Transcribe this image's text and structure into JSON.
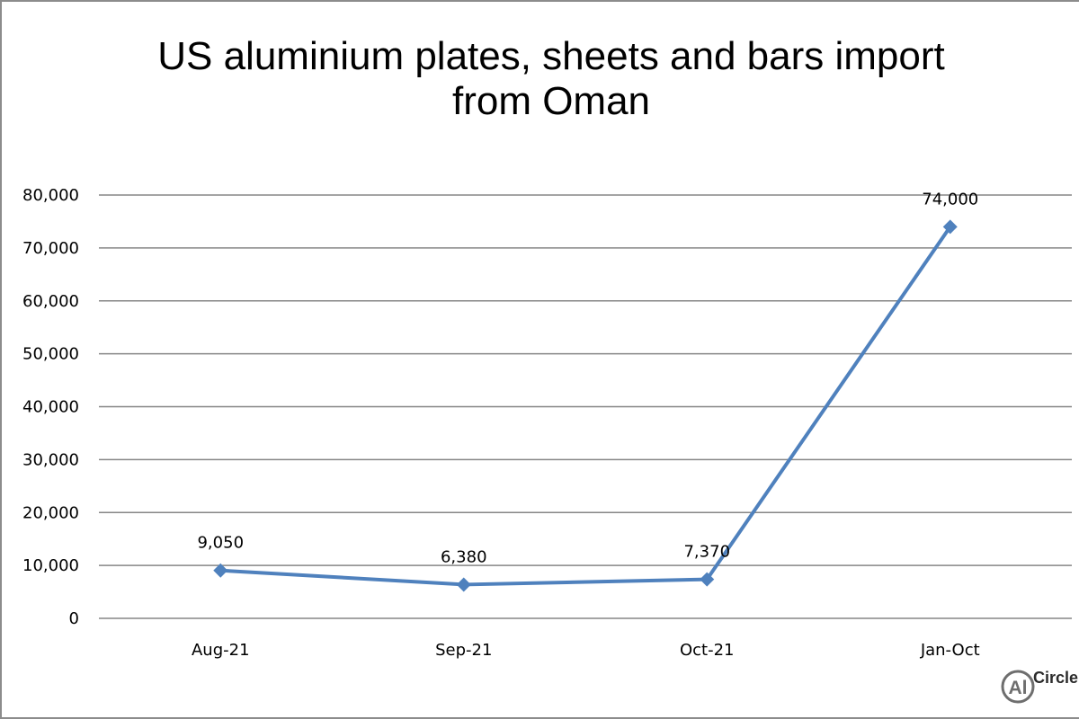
{
  "chart_data": {
    "type": "line",
    "title_lines": [
      "US aluminium plates, sheets and bars import",
      "from Oman"
    ],
    "categories": [
      "Aug-21",
      "Sep-21",
      "Oct-21",
      "Jan-Oct"
    ],
    "series": [
      {
        "values": [
          9050,
          6380,
          7370,
          74000
        ]
      }
    ],
    "data_labels": [
      "9,050",
      "6,380",
      "7,370",
      "74,000"
    ],
    "y_ticks": [
      0,
      10000,
      20000,
      30000,
      40000,
      50000,
      60000,
      70000,
      80000
    ],
    "y_tick_labels": [
      "0",
      "10,000",
      "20,000",
      "30,000",
      "40,000",
      "50,000",
      "60,000",
      "70,000",
      "80,000"
    ],
    "ylim": [
      0,
      80000
    ],
    "grid": true,
    "marker": "diamond",
    "series_color": "#4f81bd",
    "grid_color": "#868686"
  },
  "logo": {
    "text": "Circle",
    "badge": "Al"
  }
}
